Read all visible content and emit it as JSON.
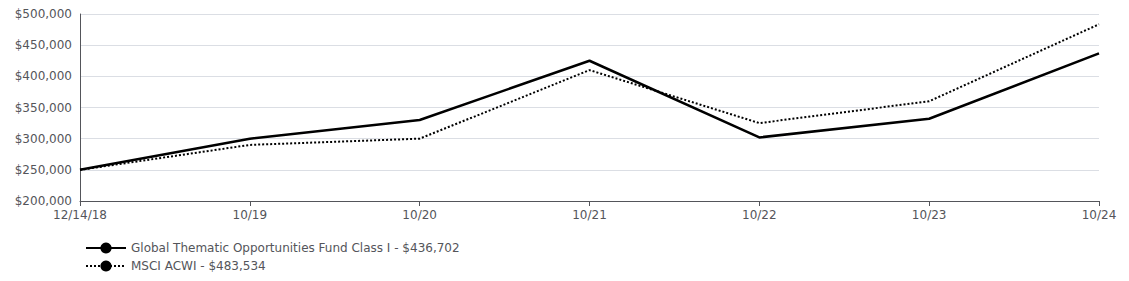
{
  "chart_data": {
    "type": "line",
    "categories": [
      "12/14/18",
      "10/19",
      "10/20",
      "10/21",
      "10/22",
      "10/23",
      "10/24"
    ],
    "series": [
      {
        "name": "Global Thematic Opportunities Fund Class I - $436,702",
        "color": "#000000",
        "line_style": "solid",
        "values": [
          250000,
          300000,
          330000,
          425000,
          302000,
          332000,
          436702
        ]
      },
      {
        "name": "MSCI ACWI - $483,534",
        "color": "#000000",
        "line_style": "dotted",
        "values": [
          250000,
          290000,
          300000,
          410000,
          325000,
          360000,
          483534
        ]
      }
    ],
    "ylim": [
      200000,
      500000
    ],
    "yticks": [
      {
        "value": 200000,
        "label": "$200,000"
      },
      {
        "value": 250000,
        "label": "$250,000"
      },
      {
        "value": 300000,
        "label": "$300,000"
      },
      {
        "value": 350000,
        "label": "$350,000"
      },
      {
        "value": 400000,
        "label": "$400,000"
      },
      {
        "value": 450000,
        "label": "$450,000"
      },
      {
        "value": 500000,
        "label": "$500,000"
      }
    ],
    "grid": true,
    "legend": "lower left"
  }
}
